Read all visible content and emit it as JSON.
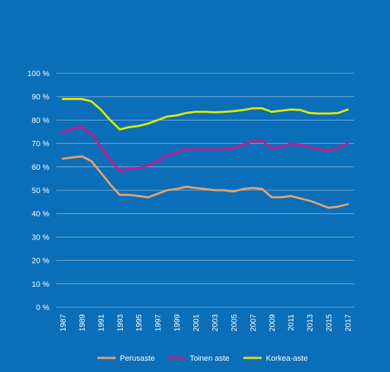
{
  "chart_data": {
    "type": "line",
    "title": "",
    "xlabel": "",
    "ylabel": "",
    "x": [
      1987,
      1988,
      1989,
      1990,
      1991,
      1992,
      1993,
      1994,
      1995,
      1996,
      1997,
      1998,
      1999,
      2000,
      2001,
      2002,
      2003,
      2004,
      2005,
      2006,
      2007,
      2008,
      2009,
      2010,
      2011,
      2012,
      2013,
      2014,
      2015,
      2016,
      2017
    ],
    "x_tick_labels": [
      "1987",
      "1989",
      "1991",
      "1993",
      "1995",
      "1997",
      "1999",
      "2001",
      "2003",
      "2005",
      "2007",
      "2009",
      "2011",
      "2013",
      "2015",
      "2017"
    ],
    "y_tick_labels": [
      "0 %",
      "10 %",
      "20 %",
      "30 %",
      "40 %",
      "50 %",
      "60 %",
      "70 %",
      "80 %",
      "90 %",
      "100 %"
    ],
    "ylim": [
      0,
      100
    ],
    "grid": true,
    "legend_position": "bottom",
    "series": [
      {
        "name": "Perusaste",
        "color": "#e8a06a",
        "values": [
          63.5,
          64,
          64.5,
          62.5,
          57.5,
          52.5,
          48,
          48,
          47.5,
          47,
          48.5,
          50,
          50.5,
          51.5,
          51,
          50.5,
          50,
          50,
          49.5,
          50.5,
          51,
          50.5,
          47,
          47,
          47.5,
          46.5,
          45.5,
          44,
          42.5,
          43,
          44
        ]
      },
      {
        "name": "Toinen aste",
        "color": "#d6138a",
        "values": [
          74.5,
          76.5,
          77,
          74.5,
          68.5,
          63,
          58,
          59.5,
          59.5,
          60.5,
          62.5,
          65,
          66,
          67.5,
          67.5,
          67.5,
          67.5,
          67.5,
          68,
          69.5,
          71,
          71,
          68,
          68.5,
          70,
          69.5,
          68.5,
          67.5,
          67,
          68,
          70
        ]
      },
      {
        "name": "Korkea-aste",
        "color": "#e4e600",
        "values": [
          89,
          89,
          89,
          88,
          84.5,
          80,
          76,
          77,
          77.5,
          78.5,
          80,
          81.5,
          82,
          83,
          83.5,
          83.5,
          83.3,
          83.5,
          83.8,
          84.3,
          85,
          85,
          83.5,
          84,
          84.5,
          84.3,
          83,
          82.8,
          82.8,
          83,
          84.5
        ]
      }
    ]
  }
}
